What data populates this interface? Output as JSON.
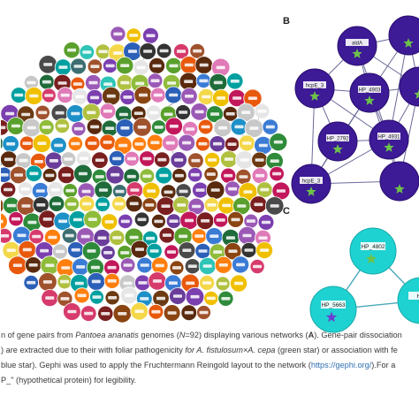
{
  "panels": {
    "b": {
      "letter": "B",
      "nodes": [
        {
          "label": "aldA",
          "star": "green"
        },
        {
          "label": "",
          "star": "green"
        },
        {
          "label": "hcpE_3",
          "star": "green"
        },
        {
          "label": "HP_4903",
          "star": "green"
        },
        {
          "label": "",
          "star": "green"
        },
        {
          "label": "HP_2792",
          "star": "green"
        },
        {
          "label": "HP_4931",
          "star": "green"
        },
        {
          "label": "hcpE_3",
          "star": "green"
        },
        {
          "label": "",
          "star": "green"
        }
      ]
    },
    "c": {
      "letter": "C",
      "nodes": [
        {
          "label": "HP_4802",
          "star": "green"
        },
        {
          "label": "HP_5663",
          "star": "blue"
        },
        {
          "label": "HP",
          "star": "none"
        }
      ]
    }
  },
  "caption": {
    "l1_a": "n of gene pairs from ",
    "l1_b": "Pantoea ananatis",
    "l1_c": " genomes (",
    "l1_d": "N",
    "l1_e": "=92) displaying various networks (",
    "l1_f": "A",
    "l1_g": "). Gene-pair dissociation",
    "l2_a": ") are extracted due to their with foliar pathogenicity ",
    "l2_b": "for A. fistulosum×A. cepa",
    "l2_c": " (green star) or association with fe",
    "l3_a": "blue star). Gephi was used to apply the Fruchtermann Reingold layout to the network (",
    "l3_b": "https://gephi.org/",
    "l3_c": ").For a",
    "l4_a": "P_\" (hypothetical protein) for legibility."
  },
  "colors": {
    "b_node": "#3d1a96",
    "c_node": "#1fd2d2",
    "star_green": "#6cc24a",
    "star_blue": "#6b3fd0",
    "link": "#2f6fb0"
  }
}
